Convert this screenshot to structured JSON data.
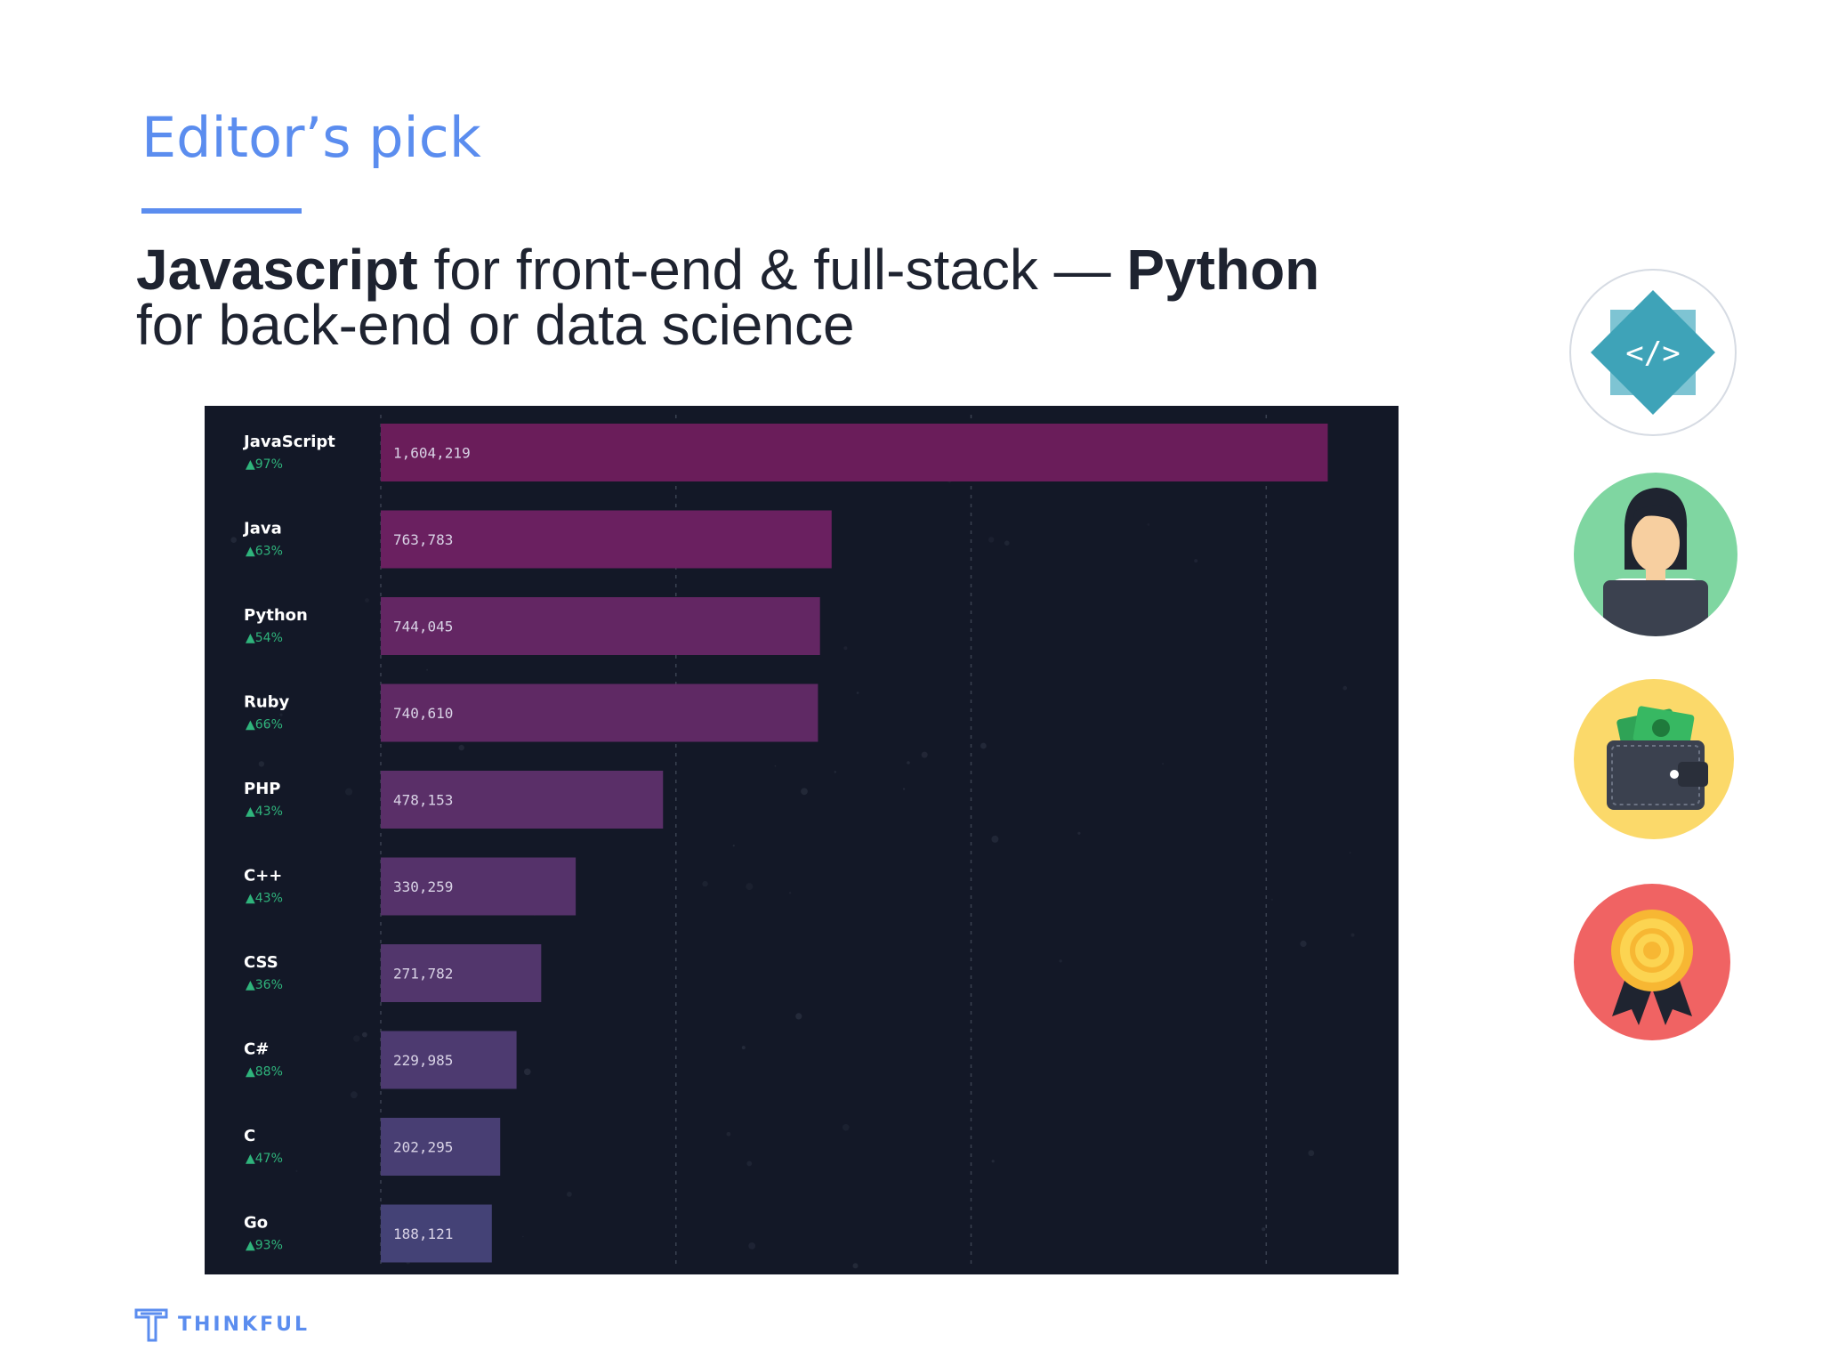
{
  "slide": {
    "title": "Editor’s pick",
    "headline": {
      "lang1": "Javascript",
      "text1": " for front-end & full-stack — ",
      "lang2": "Python",
      "text2": " for back-end or data science"
    },
    "brand": "THINKFUL"
  },
  "colors": {
    "accent": "#5b8def",
    "chart_bg": "#131827",
    "growth": "#2fb47c"
  },
  "icons": [
    "code-icon",
    "developer-icon",
    "wallet-icon",
    "award-icon"
  ],
  "chart_data": {
    "type": "bar",
    "orientation": "horizontal",
    "categories": [
      "JavaScript",
      "Java",
      "Python",
      "Ruby",
      "PHP",
      "C++",
      "CSS",
      "C#",
      "C",
      "Go"
    ],
    "values": [
      1604219,
      763783,
      744045,
      740610,
      478153,
      330259,
      271782,
      229985,
      202295,
      188121
    ],
    "value_labels": [
      "1,604,219",
      "763,783",
      "744,045",
      "740,610",
      "478,153",
      "330,259",
      "271,782",
      "229,985",
      "202,295",
      "188,121"
    ],
    "growth_labels": [
      "▲97%",
      "▲63%",
      "▲54%",
      "▲66%",
      "▲43%",
      "▲43%",
      "▲36%",
      "▲88%",
      "▲47%",
      "▲93%"
    ],
    "xlim": [
      0,
      1700000
    ],
    "grid": true,
    "bar_colors": [
      "#6a1d5a",
      "#6a2060",
      "#632663",
      "#5f2964",
      "#5a2f68",
      "#55326a",
      "#52366c",
      "#4d3a70",
      "#483e73",
      "#444276"
    ]
  }
}
